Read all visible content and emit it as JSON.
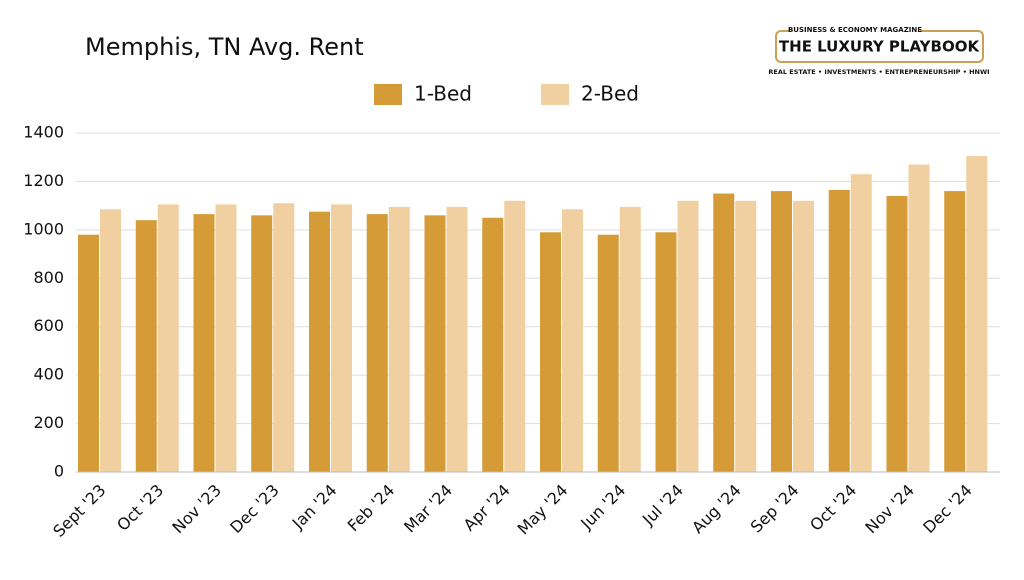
{
  "chart_data": {
    "type": "bar",
    "title": "Memphis, TN Avg. Rent",
    "categories": [
      "Sept '23",
      "Oct '23",
      "Nov '23",
      "Dec '23",
      "Jan '24",
      "Feb '24",
      "Mar '24",
      "Apr '24",
      "May '24",
      "Jun '24",
      "Jul '24",
      "Aug '24",
      "Sep '24",
      "Oct '24",
      "Nov '24",
      "Dec '24"
    ],
    "series": [
      {
        "name": "1-Bed",
        "color": "#d59b37",
        "values": [
          980,
          1040,
          1065,
          1060,
          1075,
          1065,
          1060,
          1050,
          990,
          980,
          990,
          1150,
          1160,
          1165,
          1140,
          1160
        ]
      },
      {
        "name": "2-Bed",
        "color": "#f0d0a0",
        "values": [
          1085,
          1105,
          1105,
          1110,
          1105,
          1095,
          1095,
          1120,
          1085,
          1095,
          1120,
          1120,
          1120,
          1230,
          1270,
          1305
        ]
      }
    ],
    "ylim": [
      0,
      1400
    ],
    "yticks": [
      0,
      200,
      400,
      600,
      800,
      1000,
      1200,
      1400
    ],
    "grid": true,
    "legend": "top"
  },
  "branding": {
    "tagline": "BUSINESS & ECONOMY MAGAZINE",
    "name": "THE LUXURY PLAYBOOK",
    "topics": "REAL ESTATE • INVESTMENTS • ENTREPRENEURSHIP • HNWI"
  }
}
